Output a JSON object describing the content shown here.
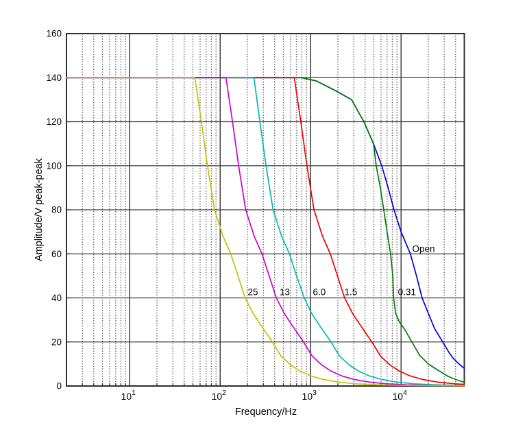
{
  "figure": {
    "background": "#ffffff"
  },
  "chart_data": {
    "type": "line",
    "title": "",
    "xlabel": "Frequency/Hz",
    "ylabel": "Amplitude/V peak-peak",
    "x_scale": "log",
    "xlim": [
      2,
      50000
    ],
    "ylim": [
      0,
      160
    ],
    "grid": "on",
    "legend": "inline-curve-labels",
    "y_ticks": [
      0,
      20,
      40,
      60,
      80,
      100,
      120,
      140,
      160
    ],
    "x_major_ticks": [
      {
        "base": "10",
        "exp": "1",
        "value": 10
      },
      {
        "base": "10",
        "exp": "2",
        "value": 100
      },
      {
        "base": "10",
        "exp": "3",
        "value": 1000
      },
      {
        "base": "10",
        "exp": "4",
        "value": 10000
      }
    ],
    "colors": {
      "grid_major": "#3d3d3d",
      "grid_minor": "#474747",
      "border": "#2e2e2e",
      "text": "#000000"
    },
    "series": [
      {
        "name": "25",
        "color": "#c2c200",
        "label": {
          "text": "25",
          "f": 230,
          "v": 42.7
        },
        "points": [
          [
            2,
            140
          ],
          [
            52.5,
            140
          ],
          [
            62,
            120
          ],
          [
            72.4,
            100
          ],
          [
            86.6,
            80
          ],
          [
            107.6,
            68
          ],
          [
            131,
            60
          ],
          [
            157.5,
            50
          ],
          [
            189,
            40
          ],
          [
            231,
            33
          ],
          [
            283.5,
            27.5
          ],
          [
            378,
            20
          ],
          [
            472.5,
            13.5
          ],
          [
            604,
            9.5
          ],
          [
            761,
            6.8
          ],
          [
            998,
            4.6
          ],
          [
            1365,
            3.0
          ],
          [
            1995,
            1.8
          ],
          [
            3150,
            1.0
          ],
          [
            5250,
            0.55
          ],
          [
            10500,
            0.3
          ],
          [
            21000,
            0.18
          ],
          [
            50000,
            0.1
          ]
        ]
      },
      {
        "name": "13",
        "color": "#cc00cc",
        "label": {
          "text": "13",
          "f": 518,
          "v": 42.7
        },
        "points": [
          [
            2,
            140
          ],
          [
            116,
            140
          ],
          [
            136.9,
            120
          ],
          [
            160,
            100
          ],
          [
            191.4,
            80
          ],
          [
            237.8,
            68
          ],
          [
            290,
            60
          ],
          [
            348,
            50
          ],
          [
            417.6,
            40
          ],
          [
            510.4,
            33
          ],
          [
            626.4,
            27.5
          ],
          [
            835,
            20
          ],
          [
            1044,
            13.5
          ],
          [
            1334,
            9.5
          ],
          [
            1682,
            6.8
          ],
          [
            2204,
            4.6
          ],
          [
            3016,
            3.0
          ],
          [
            4408,
            1.8
          ],
          [
            6960,
            1.0
          ],
          [
            11600,
            0.55
          ],
          [
            23200,
            0.3
          ],
          [
            46400,
            0.16
          ],
          [
            50000,
            0.15
          ]
        ]
      },
      {
        "name": "6.0",
        "color": "#00b8b8",
        "label": {
          "text": "6.0",
          "f": 1248,
          "v": 42.7
        },
        "points": [
          [
            2,
            140
          ],
          [
            236,
            140
          ],
          [
            275,
            120
          ],
          [
            321.5,
            100
          ],
          [
            384.5,
            80
          ],
          [
            477.7,
            68
          ],
          [
            582.5,
            60
          ],
          [
            699,
            50
          ],
          [
            850,
            40
          ],
          [
            1025,
            33
          ],
          [
            1258,
            27.5
          ],
          [
            1678,
            20
          ],
          [
            2097,
            13.5
          ],
          [
            2680,
            9.5
          ],
          [
            3378,
            6.8
          ],
          [
            4427,
            4.6
          ],
          [
            6058,
            3.0
          ],
          [
            8854,
            1.8
          ],
          [
            13980,
            1.0
          ],
          [
            23300,
            0.55
          ],
          [
            46600,
            0.3
          ],
          [
            50000,
            0.28
          ]
        ]
      },
      {
        "name": "1.5",
        "color": "#ee0000",
        "label": {
          "text": "1.5",
          "f": 2784,
          "v": 42.7
        },
        "points": [
          [
            2,
            140
          ],
          [
            660,
            140
          ],
          [
            778.8,
            120
          ],
          [
            910.8,
            100
          ],
          [
            1089,
            80
          ],
          [
            1353,
            68
          ],
          [
            1650,
            60
          ],
          [
            1980,
            50
          ],
          [
            2376,
            40
          ],
          [
            2904,
            33
          ],
          [
            3564,
            27.5
          ],
          [
            4752,
            20
          ],
          [
            5940,
            13.5
          ],
          [
            7590,
            9.5
          ],
          [
            9570,
            6.8
          ],
          [
            12540,
            4.6
          ],
          [
            17160,
            3.0
          ],
          [
            25080,
            1.8
          ],
          [
            39600,
            1.0
          ],
          [
            50000,
            0.75
          ]
        ]
      },
      {
        "name": "0.31",
        "color": "#007c00",
        "label": {
          "text": "0.31",
          "f": 11600,
          "v": 42.7
        },
        "points": [
          [
            2,
            140
          ],
          [
            790,
            140
          ],
          [
            1160,
            138.5
          ],
          [
            1900,
            134
          ],
          [
            2835,
            130
          ],
          [
            3880,
            120
          ],
          [
            4955,
            110
          ],
          [
            5310,
            100
          ],
          [
            5900,
            90
          ],
          [
            6430,
            80
          ],
          [
            7000,
            70
          ],
          [
            7660,
            60
          ],
          [
            8100,
            50
          ],
          [
            8260,
            40
          ],
          [
            8700,
            33
          ],
          [
            9600,
            29
          ],
          [
            10860,
            26
          ],
          [
            13170,
            20
          ],
          [
            16000,
            14
          ],
          [
            20000,
            10
          ],
          [
            26000,
            7
          ],
          [
            33000,
            4.4
          ],
          [
            41000,
            2.8
          ],
          [
            50000,
            1.7
          ]
        ]
      },
      {
        "name": "Open",
        "color": "#0000e0",
        "label": {
          "text": "Open",
          "f": 17700,
          "v": 62.3
        },
        "points": [
          [
            2,
            140
          ],
          [
            790,
            140
          ],
          [
            1160,
            138.5
          ],
          [
            1900,
            134
          ],
          [
            2835,
            130
          ],
          [
            3880,
            120
          ],
          [
            4955,
            110
          ],
          [
            6110,
            100
          ],
          [
            7200,
            90
          ],
          [
            8350,
            80
          ],
          [
            10000,
            70
          ],
          [
            12670,
            60
          ],
          [
            14800,
            50
          ],
          [
            17070,
            40
          ],
          [
            20000,
            33
          ],
          [
            23500,
            26
          ],
          [
            28870,
            20
          ],
          [
            33500,
            15.5
          ],
          [
            38000,
            12.4
          ],
          [
            44000,
            9.9
          ],
          [
            50000,
            8
          ]
        ]
      }
    ],
    "draw_order": [
      "Open",
      "0.31",
      "1.5",
      "6.0",
      "13",
      "25"
    ]
  }
}
